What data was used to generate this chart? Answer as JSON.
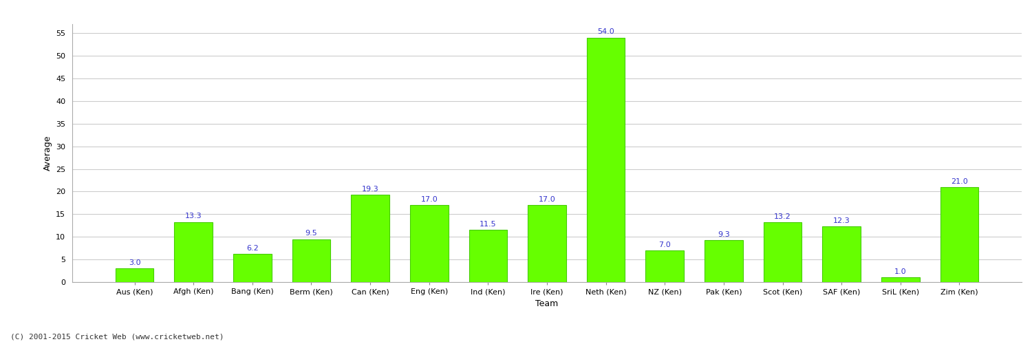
{
  "categories": [
    "Aus (Ken)",
    "Afgh (Ken)",
    "Bang (Ken)",
    "Berm (Ken)",
    "Can (Ken)",
    "Eng (Ken)",
    "Ind (Ken)",
    "Ire (Ken)",
    "Neth (Ken)",
    "NZ (Ken)",
    "Pak (Ken)",
    "Scot (Ken)",
    "SAF (Ken)",
    "SriL (Ken)",
    "Zim (Ken)"
  ],
  "values": [
    3.0,
    13.3,
    6.2,
    9.5,
    19.3,
    17.0,
    11.5,
    17.0,
    54.0,
    7.0,
    9.3,
    13.2,
    12.3,
    1.0,
    21.0
  ],
  "bar_color": "#66ff00",
  "bar_edge_color": "#44cc00",
  "label_color": "#3333cc",
  "xlabel": "Team",
  "ylabel": "Average",
  "ylim": [
    0,
    57
  ],
  "yticks": [
    0,
    5,
    10,
    15,
    20,
    25,
    30,
    35,
    40,
    45,
    50,
    55
  ],
  "background_color": "#ffffff",
  "grid_color": "#cccccc",
  "footnote": "(C) 2001-2015 Cricket Web (www.cricketweb.net)",
  "axis_label_fontsize": 9,
  "tick_fontsize": 8,
  "value_label_fontsize": 8
}
